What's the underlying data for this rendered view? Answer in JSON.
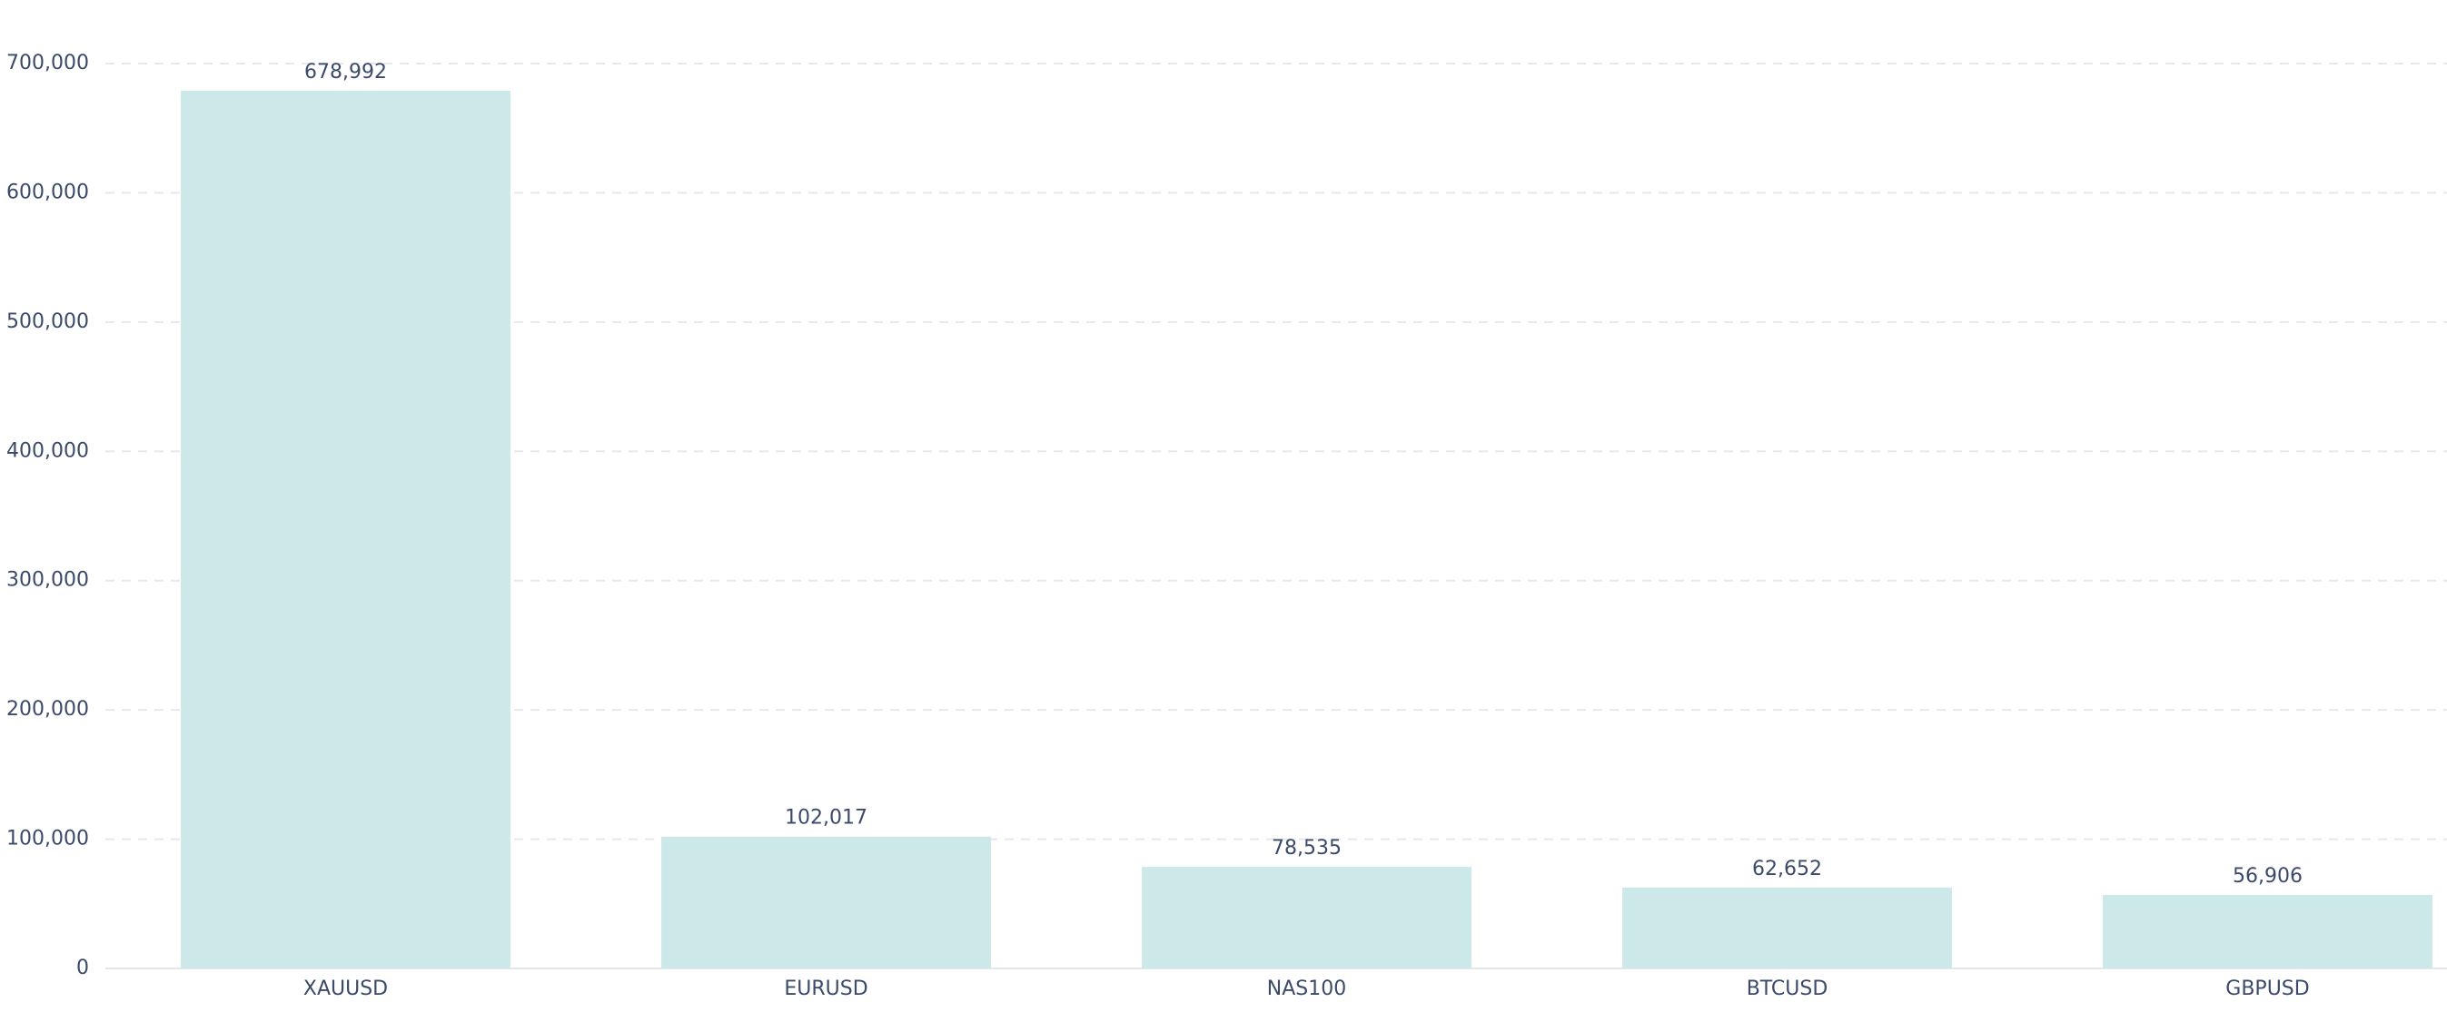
{
  "chart_data": {
    "type": "bar",
    "categories": [
      "XAUUSD",
      "EURUSD",
      "NAS100",
      "BTCUSD",
      "GBPUSD"
    ],
    "values": [
      678992,
      102017,
      78535,
      62652,
      56906
    ],
    "value_labels": [
      "678,992",
      "102,017",
      "78,535",
      "62,652",
      "56,906"
    ],
    "color": "#cde8e8",
    "ylim": [
      0,
      700000
    ],
    "yticks": [
      0,
      {
        "value": 100000,
        "label": "100,000"
      },
      {
        "value": 200000,
        "label": "200,000"
      },
      {
        "value": 300000,
        "label": "300,000"
      },
      {
        "value": 400000,
        "label": "400,000"
      },
      {
        "value": 500000,
        "label": "500,000"
      },
      {
        "value": 600000,
        "label": "600,000"
      },
      {
        "value": 700000,
        "label": "700,000"
      }
    ],
    "grid": true
  }
}
